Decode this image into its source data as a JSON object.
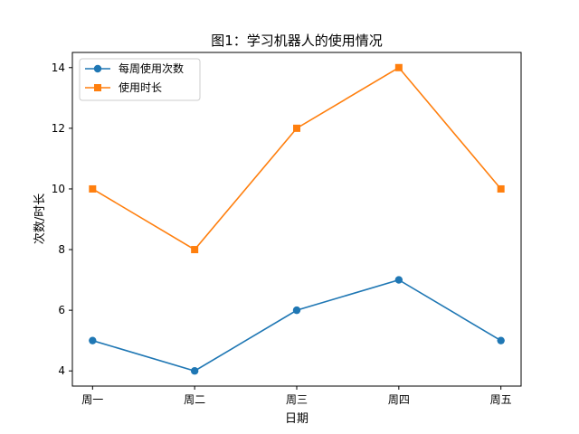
{
  "chart_data": {
    "type": "line",
    "title": "图1：学习机器人的使用情况",
    "xlabel": "日期",
    "ylabel": "次数/时长",
    "categories": [
      "周一",
      "周二",
      "周三",
      "周四",
      "周五"
    ],
    "ylim": [
      3.5,
      14.5
    ],
    "yticks": [
      4,
      6,
      8,
      10,
      12,
      14
    ],
    "grid": false,
    "legend_position": "top-left",
    "series": [
      {
        "name": "每周使用次数",
        "values": [
          5,
          4,
          6,
          7,
          5
        ],
        "color": "#1f77b4",
        "marker": "circle"
      },
      {
        "name": "使用时长",
        "values": [
          10,
          8,
          12,
          14,
          10
        ],
        "color": "#ff7f0e",
        "marker": "square"
      }
    ]
  }
}
